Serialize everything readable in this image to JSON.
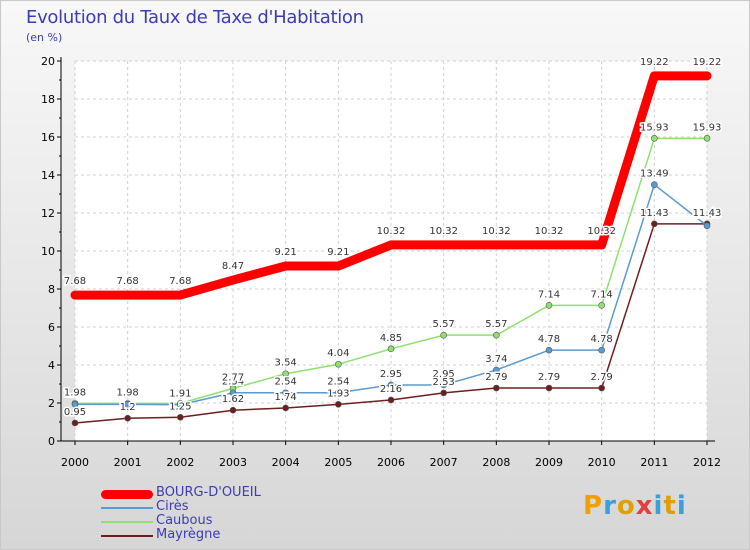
{
  "title": "Evolution du Taux de Taxe d'Habitation",
  "unit_label": "(en %)",
  "logo": {
    "text": "Proxiti",
    "colors": [
      "#f0a000",
      "#3aa0dc",
      "#e0a000",
      "#e04040",
      "#3aa0dc",
      "#e0a000",
      "#3aa0dc"
    ]
  },
  "chart_data": {
    "type": "line",
    "title": "Evolution du Taux de Taxe d'Habitation",
    "ylabel": "(en %)",
    "xlabel": "",
    "x": [
      "2000",
      "2001",
      "2002",
      "2003",
      "2004",
      "2005",
      "2006",
      "2007",
      "2008",
      "2009",
      "2010",
      "2011",
      "2012"
    ],
    "ylim": [
      0,
      20
    ],
    "yticks": [
      "0",
      "2",
      "4",
      "6",
      "8",
      "10",
      "12",
      "14",
      "16",
      "18",
      "20"
    ],
    "grid": true,
    "legend_position": "bottom-left",
    "series": [
      {
        "name": "BOURG-D'OUEIL",
        "color": "#ff0000",
        "values": [
          7.68,
          7.68,
          7.68,
          8.47,
          9.21,
          9.21,
          10.32,
          10.32,
          10.32,
          10.32,
          10.32,
          19.22,
          19.22
        ],
        "labels": [
          "7.68",
          "7.68",
          "7.68",
          "8.47",
          "9.21",
          "9.21",
          "10.32",
          "10.32",
          "10.32",
          "10.32",
          "10.32",
          "19.22",
          "19.22"
        ]
      },
      {
        "name": "Cirès",
        "color": "#5a9ad2",
        "values": [
          1.93,
          1.93,
          1.91,
          2.54,
          2.54,
          2.54,
          2.95,
          2.95,
          3.74,
          4.78,
          4.78,
          13.49,
          11.33
        ],
        "labels": [
          "1.93",
          "1.93",
          "1.91",
          "2.54",
          "2.54",
          "2.54",
          "2.95",
          "2.95",
          "3.74",
          "4.78",
          "4.78",
          "13.49",
          "11.33"
        ]
      },
      {
        "name": "Caubous",
        "color": "#90e070",
        "values": [
          1.98,
          1.98,
          1.98,
          2.77,
          3.54,
          4.04,
          4.85,
          5.57,
          5.57,
          7.14,
          7.14,
          15.93,
          15.93
        ],
        "labels": [
          "1.98",
          "1.98",
          "",
          "2.77",
          "3.54",
          "4.04",
          "4.85",
          "5.57",
          "5.57",
          "7.14",
          "7.14",
          "15.93",
          "15.93"
        ]
      },
      {
        "name": "Mayrègne",
        "color": "#6e1e1e",
        "values": [
          0.95,
          1.2,
          1.25,
          1.62,
          1.74,
          1.93,
          2.16,
          2.53,
          2.79,
          2.79,
          2.79,
          11.43,
          11.43
        ],
        "labels": [
          "0.95",
          "1.2",
          "1.25",
          "1.62",
          "1.74",
          "1.93",
          "2.16",
          "2.53",
          "2.79",
          "2.79",
          "2.79",
          "11.43",
          "11.43"
        ]
      }
    ]
  }
}
